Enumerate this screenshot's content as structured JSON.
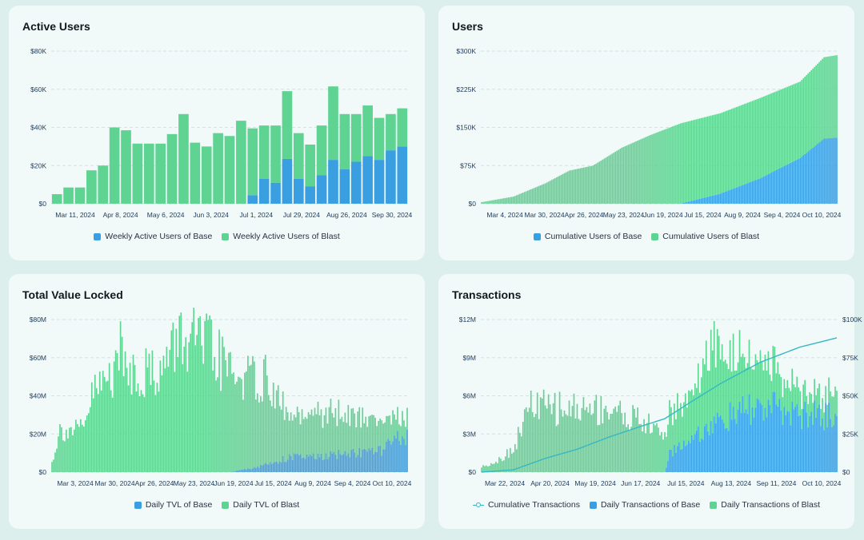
{
  "colors": {
    "base": "#3a9fe0",
    "blast": "#5fd392",
    "line": "#35b8c4"
  },
  "charts": [
    {
      "title": "Active Users",
      "chart_data": {
        "type": "bar",
        "stacked": true,
        "grid": true,
        "legend_position": "bottom",
        "ylim": [
          0,
          80000
        ],
        "yticks": [
          "$0",
          "$20K",
          "$40K",
          "$60K",
          "$80K"
        ],
        "xtick_labels": [
          "Mar 11, 2024",
          "Apr 8, 2024",
          "May 6, 2024",
          "Jun 3, 2024",
          "Jul 1, 2024",
          "Jul 29, 2024",
          "Aug 26, 2024",
          "Sep 30, 2024"
        ],
        "series": [
          {
            "name": "Weekly Active Users of Base",
            "color": "base",
            "values": [
              0,
              0,
              0,
              0,
              0,
              0,
              0,
              0,
              0,
              0,
              0,
              0,
              0,
              0,
              0,
              0,
              0,
              4500,
              13000,
              11000,
              23500,
              13000,
              9000,
              15000,
              23000,
              18000,
              22000,
              25000,
              23000,
              28000,
              30000
            ]
          },
          {
            "name": "Weekly Active Users of Blast",
            "color": "blast",
            "values": [
              5000,
              8500,
              8500,
              17500,
              20000,
              40000,
              38500,
              31500,
              31500,
              31500,
              36500,
              47000,
              32000,
              30000,
              37000,
              35500,
              43500,
              35000,
              28000,
              30000,
              35500,
              24000,
              22000,
              26000,
              38500,
              29000,
              25000,
              26500,
              22000,
              19000,
              20000
            ]
          }
        ]
      }
    },
    {
      "title": "Users",
      "chart_data": {
        "type": "bar",
        "stacked": true,
        "cumulative": true,
        "grid": true,
        "legend_position": "bottom",
        "ylim": [
          0,
          300000
        ],
        "yticks": [
          "$0",
          "$75K",
          "$150K",
          "$225K",
          "$300K"
        ],
        "xtick_labels": [
          "Mar 4, 2024",
          "Mar 30, 2024",
          "Apr 26, 2024",
          "May 23, 2024",
          "Jun 19, 2024",
          "Jul 15, 2024",
          "Aug 9, 2024",
          "Sep 4, 2024",
          "Oct 10, 2024"
        ],
        "num_points": 224,
        "series": [
          {
            "name": "Cumulative Users of Base",
            "color": "base",
            "anchors": [
              [
                0,
                0
              ],
              [
                125,
                0
              ],
              [
                150,
                20000
              ],
              [
                175,
                50000
              ],
              [
                200,
                90000
              ],
              [
                215,
                128000
              ],
              [
                223,
                130000
              ]
            ]
          },
          {
            "name": "Cumulative Users of Blast",
            "color": "blast",
            "anchors": [
              [
                0,
                3000
              ],
              [
                20,
                14000
              ],
              [
                40,
                40000
              ],
              [
                55,
                65000
              ],
              [
                70,
                75000
              ],
              [
                88,
                110000
              ],
              [
                106,
                135000
              ],
              [
                125,
                158000
              ],
              [
                150,
                158000
              ],
              [
                175,
                158000
              ],
              [
                200,
                150000
              ],
              [
                215,
                160000
              ],
              [
                223,
                162000
              ]
            ]
          }
        ]
      }
    },
    {
      "title": "Total Value Locked",
      "chart_data": {
        "type": "bar",
        "stacked": true,
        "grid": true,
        "legend_position": "bottom",
        "ylim": [
          0,
          80000000
        ],
        "yticks": [
          "$0",
          "$20M",
          "$40M",
          "$60M",
          "$80M"
        ],
        "xtick_labels": [
          "Mar 3, 2024",
          "Mar 30, 2024",
          "Apr 26, 2024",
          "May 23, 2024",
          "Jun 19, 2024",
          "Jul 15, 2024",
          "Aug 9, 2024",
          "Sep 4, 2024",
          "Oct 10, 2024"
        ],
        "num_points": 224,
        "series": [
          {
            "name": "Daily TVL of Base",
            "color": "base",
            "anchors": [
              [
                0,
                0
              ],
              [
                112,
                0
              ],
              [
                130,
                3000000
              ],
              [
                150,
                8000000
              ],
              [
                170,
                8000000
              ],
              [
                185,
                10000000
              ],
              [
                205,
                11000000
              ],
              [
                223,
                20000000
              ]
            ]
          },
          {
            "name": "Daily TVL of Blast",
            "color": "blast",
            "anchors": [
              [
                0,
                5000000
              ],
              [
                5,
                22000000
              ],
              [
                20,
                22000000
              ],
              [
                25,
                40000000
              ],
              [
                38,
                52000000
              ],
              [
                40,
                71000000
              ],
              [
                45,
                56000000
              ],
              [
                55,
                52000000
              ],
              [
                70,
                54000000
              ],
              [
                80,
                71000000
              ],
              [
                98,
                65000000
              ],
              [
                106,
                58000000
              ],
              [
                115,
                50000000
              ],
              [
                135,
                44000000
              ],
              [
                150,
                20000000
              ],
              [
                160,
                20000000
              ],
              [
                170,
                23000000
              ],
              [
                185,
                20000000
              ],
              [
                205,
                16000000
              ],
              [
                223,
                10000000
              ]
            ]
          }
        ]
      }
    },
    {
      "title": "Transactions",
      "chart_data": {
        "type": "bar+line",
        "stacked": true,
        "grid": true,
        "legend_position": "bottom",
        "ylim": [
          0,
          12000000
        ],
        "y2lim": [
          0,
          100000
        ],
        "yticks": [
          "$0",
          "$3M",
          "$6M",
          "$9M",
          "$12M"
        ],
        "y2ticks": [
          "$0",
          "$25K",
          "$50K",
          "$75K",
          "$100K"
        ],
        "xtick_labels": [
          "Mar 22, 2024",
          "Apr 20, 2024",
          "May 19, 2024",
          "Jun 17, 2024",
          "Jul 15, 2024",
          "Aug 13, 2024",
          "Sep 11, 2024",
          "Oct 10, 2024"
        ],
        "num_points": 224,
        "series": [
          {
            "name": "Cumulative Transactions",
            "color": "line",
            "kind": "line",
            "axis": "right",
            "anchors": [
              [
                0,
                0
              ],
              [
                20,
                1500
              ],
              [
                40,
                9000
              ],
              [
                60,
                15000
              ],
              [
                80,
                23000
              ],
              [
                100,
                30000
              ],
              [
                115,
                35000
              ],
              [
                130,
                45000
              ],
              [
                150,
                58000
              ],
              [
                175,
                72000
              ],
              [
                200,
                82000
              ],
              [
                223,
                88000
              ]
            ]
          },
          {
            "name": "Daily Transactions of Base",
            "color": "base",
            "anchors": [
              [
                0,
                0
              ],
              [
                115,
                0
              ],
              [
                118,
                1500000
              ],
              [
                135,
                3000000
              ],
              [
                150,
                4000000
              ],
              [
                170,
                5000000
              ],
              [
                185,
                5000000
              ],
              [
                200,
                4500000
              ],
              [
                223,
                4500000
              ]
            ]
          },
          {
            "name": "Daily Transactions of Blast",
            "color": "blast",
            "anchors": [
              [
                0,
                400000
              ],
              [
                10,
                900000
              ],
              [
                20,
                1800000
              ],
              [
                30,
                5200000
              ],
              [
                45,
                5000000
              ],
              [
                60,
                5000000
              ],
              [
                80,
                5000000
              ],
              [
                100,
                4000000
              ],
              [
                115,
                3000000
              ],
              [
                130,
                3500000
              ],
              [
                145,
                6000000
              ],
              [
                155,
                5000000
              ],
              [
                175,
                3500000
              ],
              [
                190,
                2500000
              ],
              [
                205,
                1500000
              ],
              [
                223,
                2000000
              ]
            ]
          }
        ]
      }
    }
  ]
}
